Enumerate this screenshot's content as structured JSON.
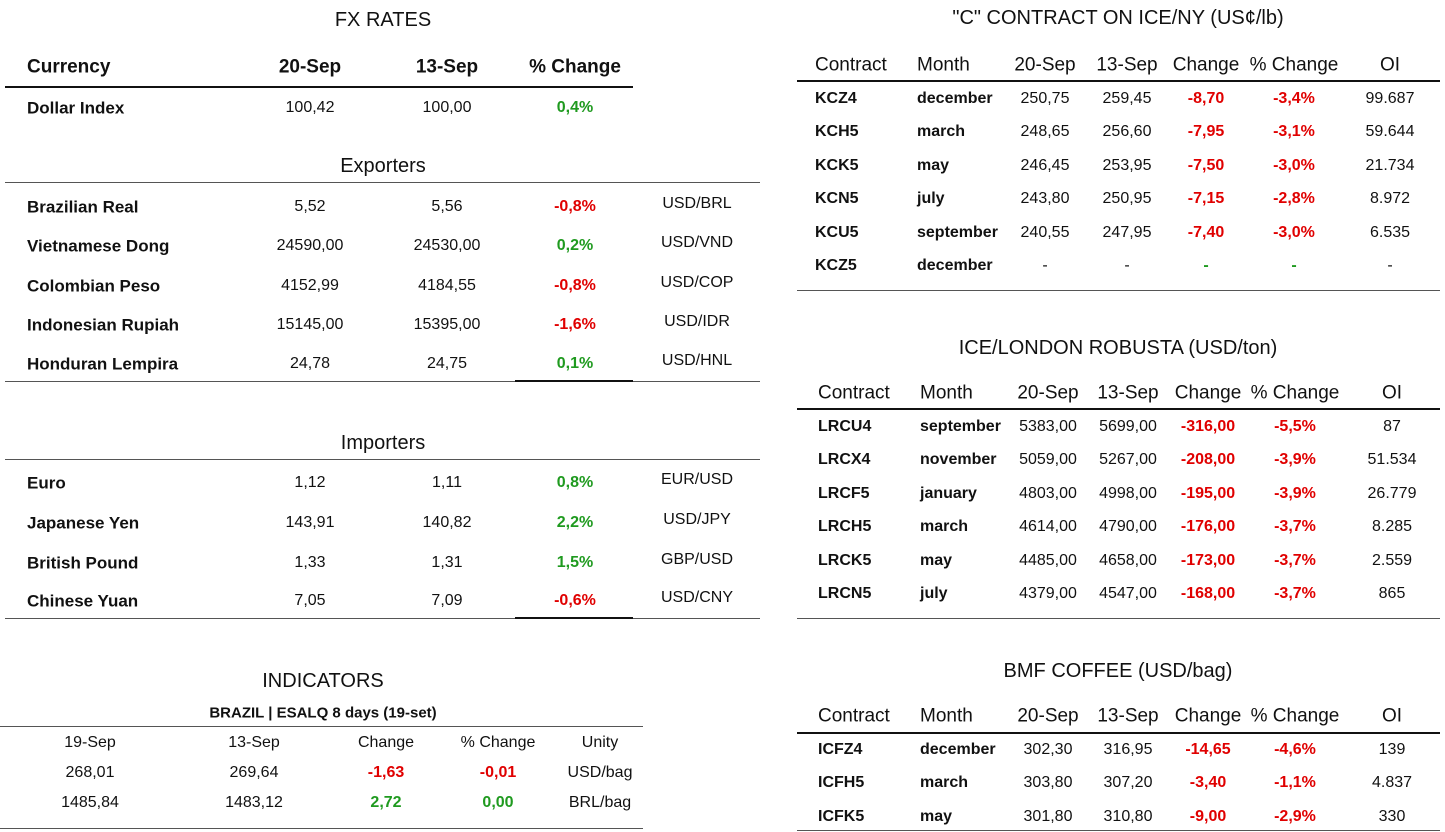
{
  "fx": {
    "title": "FX RATES",
    "headers": [
      "Currency",
      "20-Sep",
      "13-Sep",
      "% Change"
    ],
    "rows": [
      [
        "Dollar Index",
        "100,42",
        "100,00",
        "0,4%"
      ]
    ],
    "exporters": {
      "title": "Exporters",
      "rows": [
        [
          "Brazilian Real",
          "5,52",
          "5,56",
          "-0,8%",
          "USD/BRL"
        ],
        [
          "Vietnamese Dong",
          "24590,00",
          "24530,00",
          "0,2%",
          "USD/VND"
        ],
        [
          "Colombian Peso",
          "4152,99",
          "4184,55",
          "-0,8%",
          "USD/COP"
        ],
        [
          "Indonesian Rupiah",
          "15145,00",
          "15395,00",
          "-1,6%",
          "USD/IDR"
        ],
        [
          "Honduran Lempira",
          "24,78",
          "24,75",
          "0,1%",
          "USD/HNL"
        ]
      ]
    },
    "importers": {
      "title": "Importers",
      "rows": [
        [
          "Euro",
          "1,12",
          "1,11",
          "0,8%",
          "EUR/USD"
        ],
        [
          "Japanese Yen",
          "143,91",
          "140,82",
          "2,2%",
          "USD/JPY"
        ],
        [
          "British Pound",
          "1,33",
          "1,31",
          "1,5%",
          "GBP/USD"
        ],
        [
          "Chinese Yuan",
          "7,05",
          "7,09",
          "-0,6%",
          "USD/CNY"
        ]
      ]
    }
  },
  "indicators": {
    "title": "INDICATORS",
    "subtitle": "BRAZIL | ESALQ 8 days (19-set)",
    "headers": [
      "19-Sep",
      "13-Sep",
      "Change",
      "% Change",
      "Unity"
    ],
    "rows": [
      [
        "268,01",
        "269,64",
        "-1,63",
        "-0,01",
        "USD/bag"
      ],
      [
        "1485,84",
        "1483,12",
        "2,72",
        "0,00",
        "BRL/bag"
      ]
    ]
  },
  "ice_ny": {
    "title": "\"C\" CONTRACT ON ICE/NY (US¢/lb)",
    "headers": [
      "Contract",
      "Month",
      "20-Sep",
      "13-Sep",
      "Change",
      "% Change",
      "OI"
    ],
    "rows": [
      [
        "KCZ4",
        "december",
        "250,75",
        "259,45",
        "-8,70",
        "-3,4%",
        "99.687"
      ],
      [
        "KCH5",
        "march",
        "248,65",
        "256,60",
        "-7,95",
        "-3,1%",
        "59.644"
      ],
      [
        "KCK5",
        "may",
        "246,45",
        "253,95",
        "-7,50",
        "-3,0%",
        "21.734"
      ],
      [
        "KCN5",
        "july",
        "243,80",
        "250,95",
        "-7,15",
        "-2,8%",
        "8.972"
      ],
      [
        "KCU5",
        "september",
        "240,55",
        "247,95",
        "-7,40",
        "-3,0%",
        "6.535"
      ],
      [
        "KCZ5",
        "december",
        "-",
        "-",
        "-",
        "-",
        "-"
      ]
    ]
  },
  "ice_london": {
    "title": "ICE/LONDON ROBUSTA (USD/ton)",
    "headers": [
      "Contract",
      "Month",
      "20-Sep",
      "13-Sep",
      "Change",
      "% Change",
      "OI"
    ],
    "rows": [
      [
        "LRCU4",
        "september",
        "5383,00",
        "5699,00",
        "-316,00",
        "-5,5%",
        "87"
      ],
      [
        "LRCX4",
        "november",
        "5059,00",
        "5267,00",
        "-208,00",
        "-3,9%",
        "51.534"
      ],
      [
        "LRCF5",
        "january",
        "4803,00",
        "4998,00",
        "-195,00",
        "-3,9%",
        "26.779"
      ],
      [
        "LRCH5",
        "march",
        "4614,00",
        "4790,00",
        "-176,00",
        "-3,7%",
        "8.285"
      ],
      [
        "LRCK5",
        "may",
        "4485,00",
        "4658,00",
        "-173,00",
        "-3,7%",
        "2.559"
      ],
      [
        "LRCN5",
        "july",
        "4379,00",
        "4547,00",
        "-168,00",
        "-3,7%",
        "865"
      ]
    ]
  },
  "bmf": {
    "title": "BMF COFFEE (USD/bag)",
    "headers": [
      "Contract",
      "Month",
      "20-Sep",
      "13-Sep",
      "Change",
      "% Change",
      "OI"
    ],
    "rows": [
      [
        "ICFZ4",
        "december",
        "302,30",
        "316,95",
        "-14,65",
        "-4,6%",
        "139"
      ],
      [
        "ICFH5",
        "march",
        "303,80",
        "307,20",
        "-3,40",
        "-1,1%",
        "4.837"
      ],
      [
        "ICFK5",
        "may",
        "301,80",
        "310,80",
        "-9,00",
        "-2,9%",
        "330"
      ]
    ]
  }
}
